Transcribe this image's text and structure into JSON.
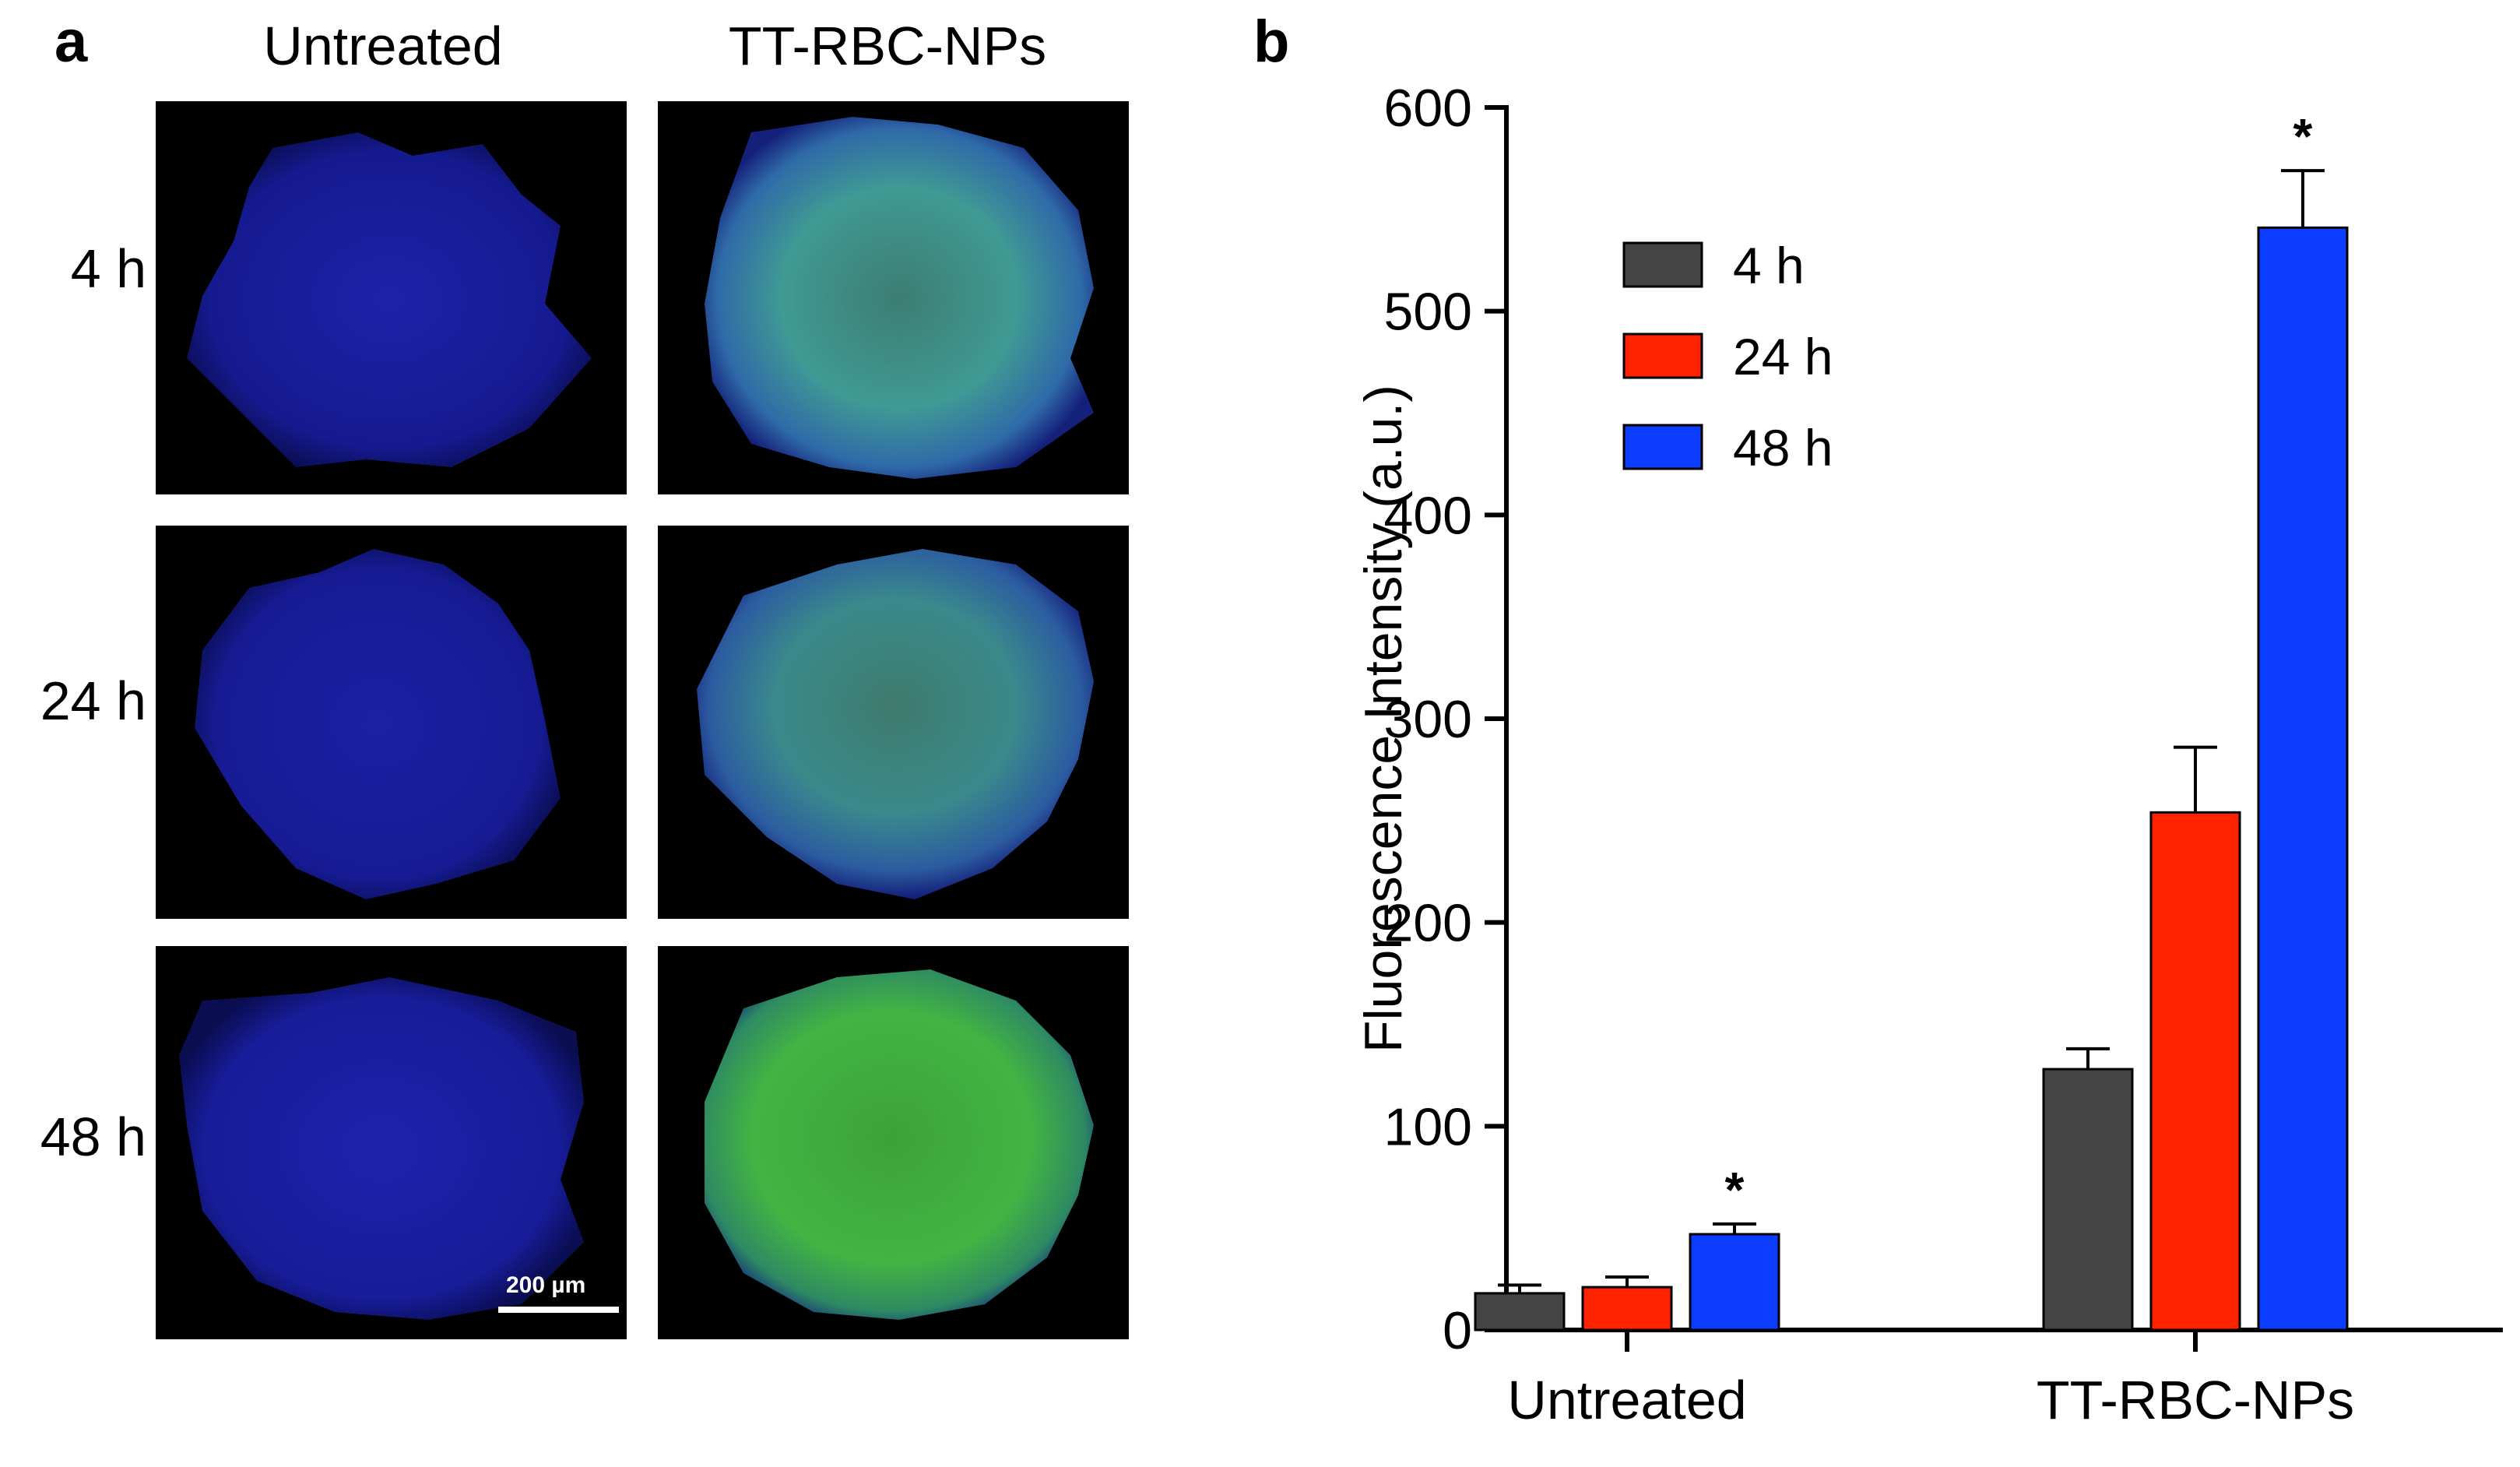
{
  "panel_a": {
    "letter": "a",
    "columns": [
      "Untreated",
      "TT-RBC-NPs"
    ],
    "rows": [
      "4 h",
      "24 h",
      "48 h"
    ],
    "scale_bar_label": "200 µm",
    "colors": {
      "nucleus_blue": "#1a1fa0",
      "fluor_green": "#3cb43c",
      "background": "#000000"
    }
  },
  "panel_b": {
    "letter": "b"
  },
  "chart_data": {
    "type": "bar",
    "categories": [
      "Untreated",
      "TT-RBC-NPs"
    ],
    "series": [
      {
        "name": "4 h",
        "color": "#444444",
        "values": [
          18,
          128
        ],
        "errors": [
          4,
          10
        ]
      },
      {
        "name": "24 h",
        "color": "#ff2200",
        "values": [
          21,
          254
        ],
        "errors": [
          5,
          32
        ]
      },
      {
        "name": "48 h",
        "color": "#0b3cff",
        "values": [
          47,
          541
        ],
        "errors": [
          5,
          28
        ]
      }
    ],
    "significance": [
      {
        "category": "Untreated",
        "series": "48 h",
        "label": "*"
      },
      {
        "category": "TT-RBC-NPs",
        "series": "48 h",
        "label": "*"
      }
    ],
    "xlabel": "",
    "ylabel": "Fluorescence Intensity (a.u.)",
    "ylim": [
      0,
      600
    ],
    "yticks": [
      0,
      100,
      200,
      300,
      400,
      500,
      600
    ],
    "legend": "top-left",
    "grid": false
  }
}
